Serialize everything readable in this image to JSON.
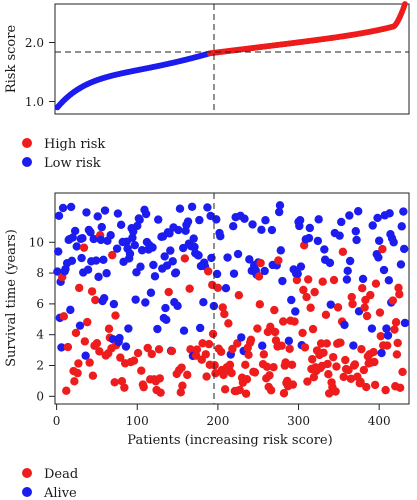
{
  "chart_data": [
    {
      "type": "scatter",
      "title": "",
      "xlabel": "",
      "ylabel": "Risk score",
      "xlim": [
        -2,
        437
      ],
      "ylim": [
        0.82,
        2.65
      ],
      "yticks": [
        "1.0",
        "2.0"
      ],
      "cutoff": {
        "x": 190,
        "y": 1.83
      },
      "n_patients": 432,
      "series": [
        {
          "name": "High risk",
          "color": "#ee1c1c",
          "x_range": [
            190,
            432
          ],
          "y_range": [
            1.83,
            2.62
          ]
        },
        {
          "name": "Low risk",
          "color": "#1c1cee",
          "x_range": [
            1,
            189
          ],
          "y_range": [
            0.93,
            1.83
          ]
        }
      ],
      "legend": {
        "position": "bottom-left",
        "entries": [
          "High risk",
          "Low risk"
        ]
      },
      "grid": false
    },
    {
      "type": "scatter",
      "title": "",
      "xlabel": "Patients (increasing risk score)",
      "ylabel": "Survival time (years)",
      "xlim": [
        -2,
        437
      ],
      "ylim": [
        -0.5,
        13.2
      ],
      "xticks": [
        "0",
        "100",
        "200",
        "300",
        "400"
      ],
      "yticks": [
        "0",
        "2",
        "4",
        "6",
        "8",
        "10"
      ],
      "cutoff": {
        "x": 190
      },
      "series": [
        {
          "name": "Dead",
          "color": "#ee1c1c",
          "approx_count": 230
        },
        {
          "name": "Alive",
          "color": "#1c1cee",
          "approx_count": 200
        }
      ],
      "legend": {
        "position": "bottom-left",
        "entries": [
          "Dead",
          "Alive"
        ]
      },
      "grid": false
    }
  ]
}
